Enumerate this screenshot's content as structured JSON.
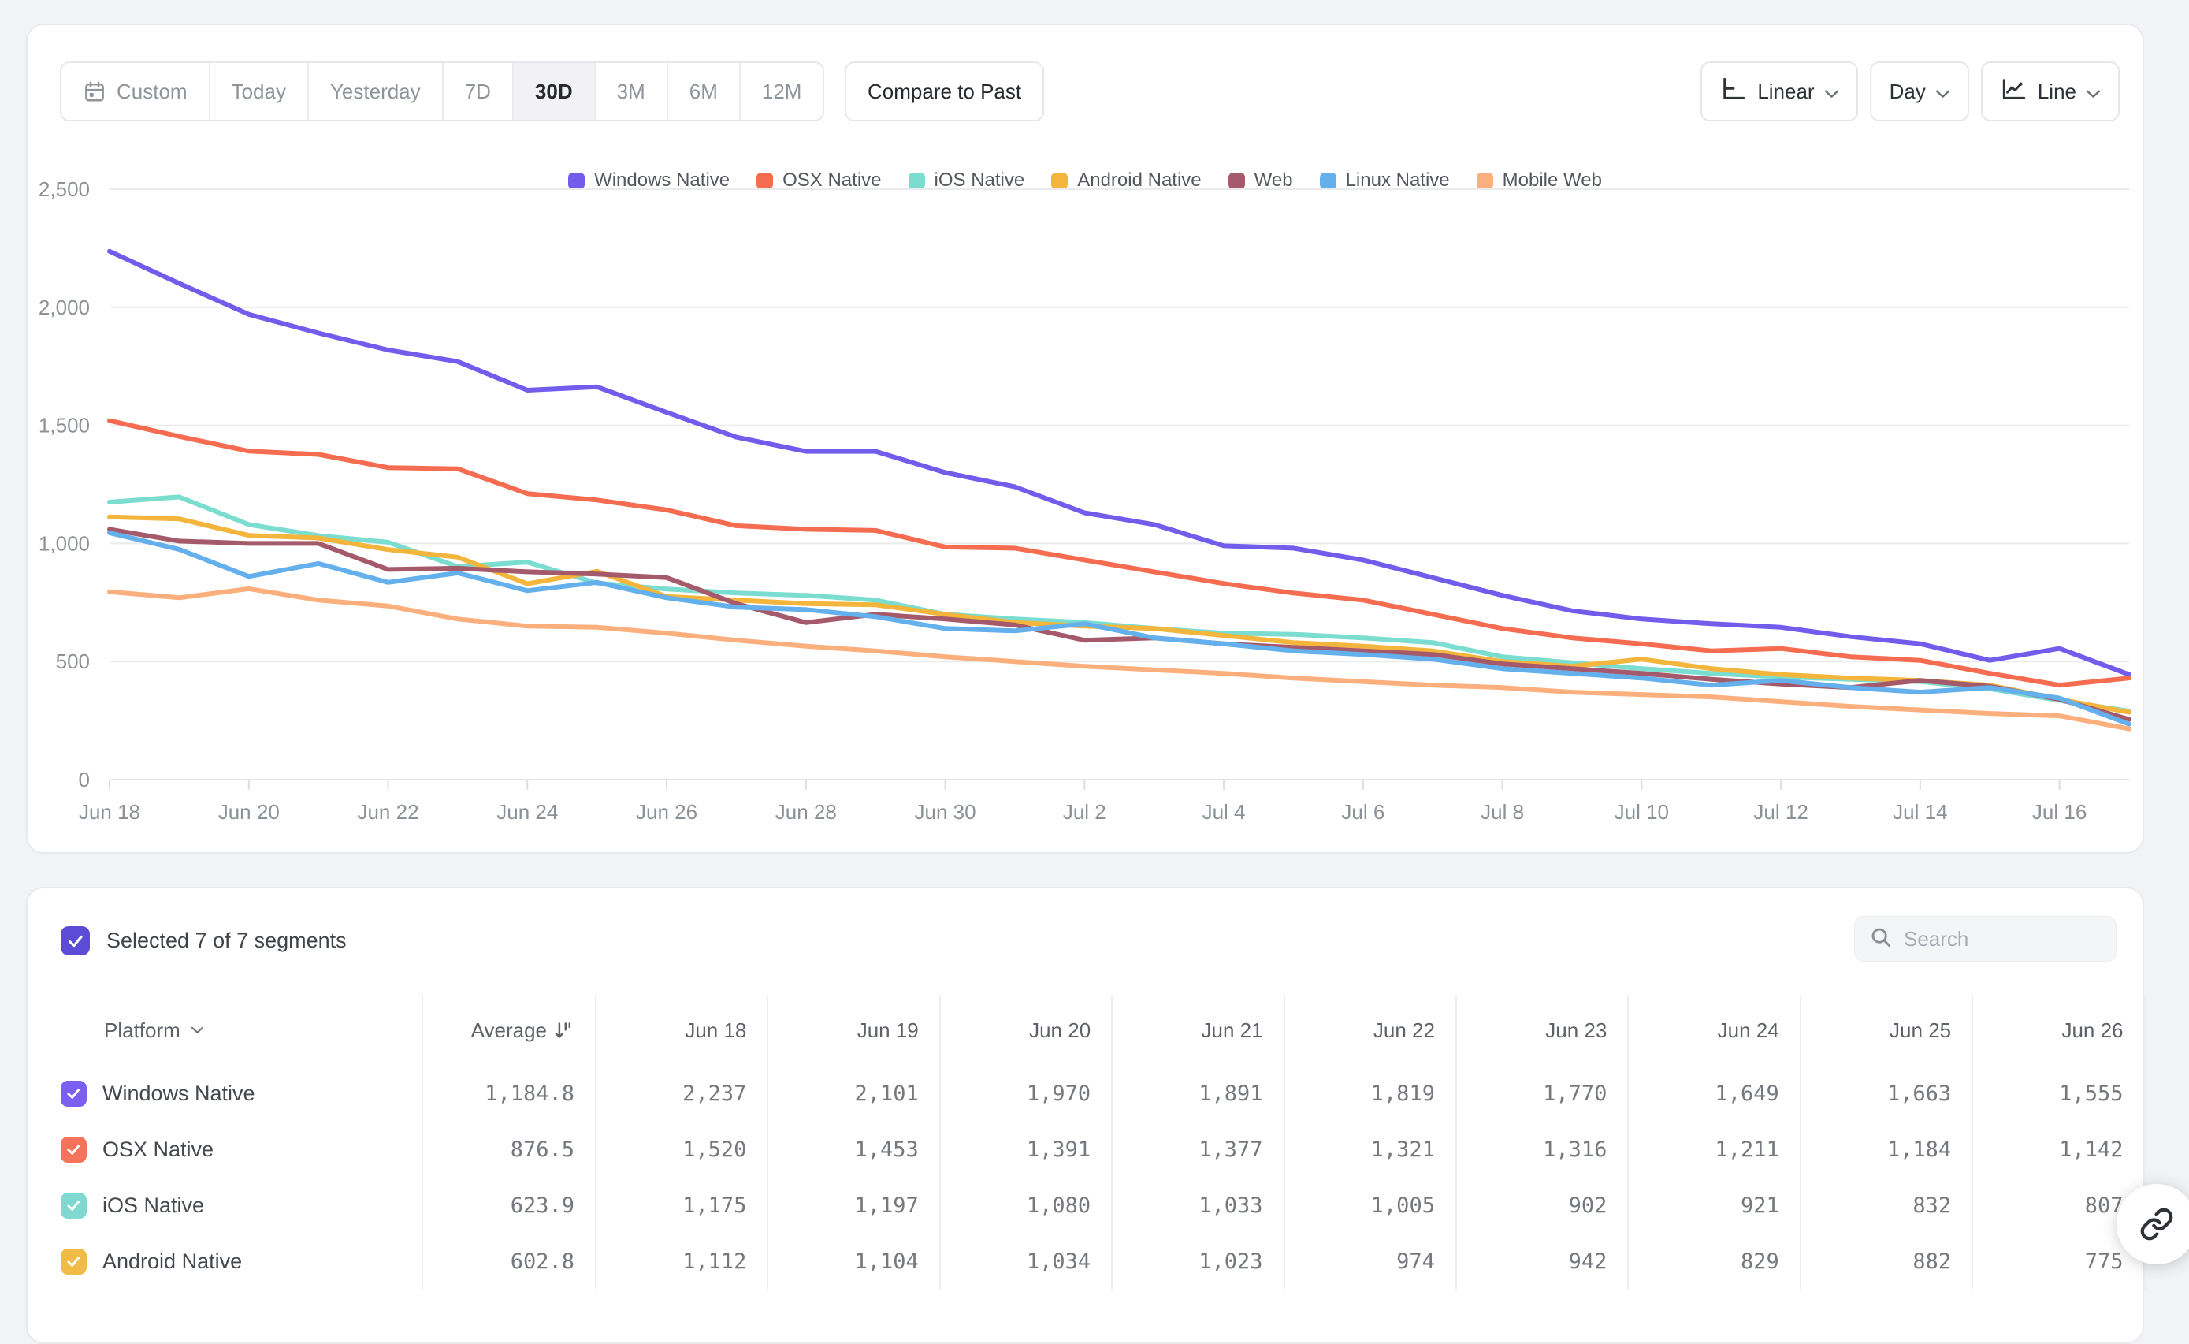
{
  "toolbar": {
    "ranges": [
      {
        "label": "Custom",
        "icon": "calendar-icon",
        "selected": false
      },
      {
        "label": "Today",
        "selected": false
      },
      {
        "label": "Yesterday",
        "selected": false
      },
      {
        "label": "7D",
        "selected": false
      },
      {
        "label": "30D",
        "selected": true
      },
      {
        "label": "3M",
        "selected": false
      },
      {
        "label": "6M",
        "selected": false
      },
      {
        "label": "12M",
        "selected": false
      }
    ],
    "compare_label": "Compare to Past",
    "scale_button": {
      "label": "Linear"
    },
    "granularity_button": {
      "label": "Day"
    },
    "chart_type_button": {
      "label": "Line"
    }
  },
  "colors": {
    "brand_purple": "#5B4BD5",
    "page_background": "#F2F3F5",
    "grid_line": "#EAEBED",
    "axis_text": "#8C9197"
  },
  "chart_data": {
    "type": "line",
    "title": "",
    "xlabel": "",
    "ylabel": "",
    "ylim": [
      0,
      2500
    ],
    "yticks": [
      0,
      500,
      1000,
      1500,
      2000,
      2500
    ],
    "grid": true,
    "legend_position": "top",
    "x": [
      "Jun 18",
      "Jun 19",
      "Jun 20",
      "Jun 21",
      "Jun 22",
      "Jun 23",
      "Jun 24",
      "Jun 25",
      "Jun 26",
      "Jun 27",
      "Jun 28",
      "Jun 29",
      "Jun 30",
      "Jul 1",
      "Jul 2",
      "Jul 3",
      "Jul 4",
      "Jul 5",
      "Jul 6",
      "Jul 7",
      "Jul 8",
      "Jul 9",
      "Jul 10",
      "Jul 11",
      "Jul 12",
      "Jul 13",
      "Jul 14",
      "Jul 15",
      "Jul 16",
      "Jul 17"
    ],
    "x_tick_labels": [
      "Jun 18",
      "Jun 20",
      "Jun 22",
      "Jun 24",
      "Jun 26",
      "Jun 28",
      "Jun 30",
      "Jul 2",
      "Jul 4",
      "Jul 6",
      "Jul 8",
      "Jul 10",
      "Jul 12",
      "Jul 14",
      "Jul 16"
    ],
    "values_note": "values from Jun 27 onward and for Web/Linux/Mobile Web are estimated from chart pixels",
    "series": [
      {
        "name": "Windows Native",
        "color": "#715CEB",
        "values": [
          2237,
          2101,
          1970,
          1891,
          1819,
          1770,
          1649,
          1663,
          1555,
          1450,
          1390,
          1390,
          1300,
          1240,
          1130,
          1080,
          990,
          980,
          930,
          855,
          780,
          715,
          680,
          660,
          645,
          605,
          575,
          505,
          555,
          445
        ]
      },
      {
        "name": "OSX Native",
        "color": "#F56C51",
        "values": [
          1520,
          1453,
          1391,
          1377,
          1321,
          1316,
          1211,
          1184,
          1142,
          1075,
          1060,
          1055,
          985,
          980,
          930,
          880,
          830,
          790,
          760,
          700,
          640,
          600,
          575,
          545,
          555,
          520,
          505,
          450,
          400,
          430
        ]
      },
      {
        "name": "iOS Native",
        "color": "#7BDCD0",
        "values": [
          1175,
          1197,
          1080,
          1033,
          1005,
          902,
          921,
          832,
          807,
          790,
          780,
          760,
          700,
          680,
          665,
          640,
          620,
          615,
          600,
          580,
          520,
          495,
          470,
          450,
          435,
          425,
          415,
          385,
          335,
          290
        ]
      },
      {
        "name": "Android Native",
        "color": "#F3B53C",
        "values": [
          1112,
          1104,
          1034,
          1023,
          974,
          942,
          829,
          882,
          775,
          760,
          745,
          740,
          700,
          665,
          650,
          640,
          610,
          580,
          565,
          545,
          500,
          480,
          510,
          470,
          445,
          430,
          420,
          400,
          340,
          285
        ]
      },
      {
        "name": "Web",
        "color": "#A55A6B",
        "values": [
          1060,
          1010,
          1000,
          1000,
          890,
          895,
          880,
          870,
          855,
          745,
          665,
          700,
          680,
          655,
          590,
          600,
          575,
          560,
          545,
          530,
          490,
          470,
          450,
          425,
          405,
          390,
          420,
          395,
          340,
          255
        ]
      },
      {
        "name": "Linux Native",
        "color": "#64B0EC",
        "values": [
          1045,
          975,
          860,
          915,
          835,
          875,
          800,
          835,
          770,
          730,
          720,
          690,
          640,
          630,
          660,
          600,
          575,
          545,
          530,
          510,
          470,
          450,
          430,
          400,
          420,
          390,
          370,
          390,
          345,
          235
        ]
      },
      {
        "name": "Mobile Web",
        "color": "#FBAF7D",
        "values": [
          795,
          770,
          808,
          760,
          735,
          680,
          650,
          645,
          620,
          590,
          565,
          545,
          520,
          500,
          480,
          465,
          450,
          430,
          415,
          400,
          390,
          370,
          360,
          350,
          330,
          310,
          295,
          280,
          270,
          215
        ]
      }
    ]
  },
  "table": {
    "selected_summary": "Selected 7 of 7 segments",
    "search_placeholder": "Search",
    "platform_header": "Platform",
    "average_header": "Average",
    "date_headers": [
      "Jun 18",
      "Jun 19",
      "Jun 20",
      "Jun 21",
      "Jun 22",
      "Jun 23",
      "Jun 24",
      "Jun 25",
      "Jun 26"
    ],
    "rows": [
      {
        "platform": "Windows Native",
        "checkbox_color": "#7A5FF0",
        "average": "1,184.8",
        "values": [
          "2,237",
          "2,101",
          "1,970",
          "1,891",
          "1,819",
          "1,770",
          "1,649",
          "1,663",
          "1,555"
        ]
      },
      {
        "platform": "OSX Native",
        "checkbox_color": "#F5735B",
        "average": "876.5",
        "values": [
          "1,520",
          "1,453",
          "1,391",
          "1,377",
          "1,321",
          "1,316",
          "1,211",
          "1,184",
          "1,142"
        ]
      },
      {
        "platform": "iOS Native",
        "checkbox_color": "#7FD9D0",
        "average": "623.9",
        "values": [
          "1,175",
          "1,197",
          "1,080",
          "1,033",
          "1,005",
          "902",
          "921",
          "832",
          "807"
        ]
      },
      {
        "platform": "Android Native",
        "checkbox_color": "#F0BC47",
        "average": "602.8",
        "values": [
          "1,112",
          "1,104",
          "1,034",
          "1,023",
          "974",
          "942",
          "829",
          "882",
          "775"
        ]
      }
    ]
  }
}
